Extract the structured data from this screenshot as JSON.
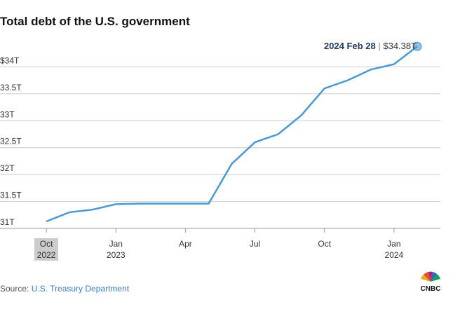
{
  "chart_data": {
    "type": "line",
    "title": "Total debt of the U.S. government",
    "x": [
      "2022-10",
      "2022-11",
      "2022-12",
      "2023-01",
      "2023-02",
      "2023-03",
      "2023-04",
      "2023-05",
      "2023-06",
      "2023-07",
      "2023-08",
      "2023-09",
      "2023-10",
      "2023-11",
      "2023-12",
      "2024-01",
      "2024-02"
    ],
    "series": [
      {
        "name": "Total debt",
        "color": "#4a98d4",
        "values": [
          31.13,
          31.3,
          31.35,
          31.45,
          31.46,
          31.46,
          31.46,
          31.46,
          32.2,
          32.6,
          32.75,
          33.1,
          33.6,
          33.75,
          33.95,
          34.05,
          34.38
        ]
      }
    ],
    "xlim": [
      "2022-08",
      "2024-03"
    ],
    "xticks": [
      {
        "value": "2022-10",
        "label": "Oct 2022"
      },
      {
        "value": "2023-01",
        "label": "Jan 2023"
      },
      {
        "value": "2023-04",
        "label": "Apr"
      },
      {
        "value": "2023-07",
        "label": "Jul"
      },
      {
        "value": "2023-10",
        "label": "Oct"
      },
      {
        "value": "2024-01",
        "label": "Jan 2024"
      }
    ],
    "ylim": [
      31,
      34.5
    ],
    "yticks": [
      {
        "value": 31,
        "label": "31T"
      },
      {
        "value": 31.5,
        "label": "31.5T"
      },
      {
        "value": 32,
        "label": "32T"
      },
      {
        "value": 32.5,
        "label": "32.5T"
      },
      {
        "value": 33,
        "label": "33T"
      },
      {
        "value": 33.5,
        "label": "33.5T"
      },
      {
        "value": 34,
        "label": "$34T"
      }
    ],
    "grid": true,
    "annotation": {
      "label": "2024 Feb 28",
      "value_label": "$34.38T"
    },
    "source_label": "Source:",
    "source": "U.S. Treasury Department",
    "logo": "CNBC"
  }
}
